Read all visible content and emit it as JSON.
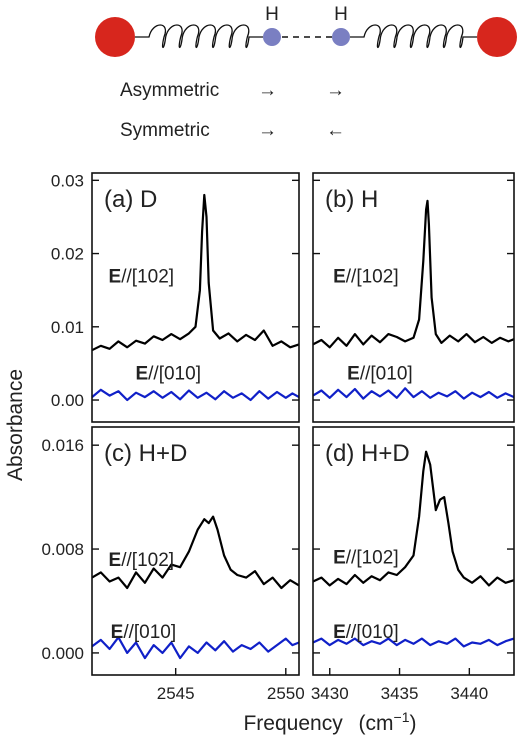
{
  "schematic": {
    "atom_labels": [
      "H",
      "H"
    ],
    "modes": [
      {
        "name": "Asymmetric",
        "arrows": [
          "→",
          "→"
        ]
      },
      {
        "name": "Symmetric",
        "arrows": [
          "→",
          "←"
        ]
      }
    ],
    "colors": {
      "end_atom": "#d7261d",
      "h_atom": "#7a7fc2",
      "spring": "#111111"
    }
  },
  "axes": {
    "ylabel": "Absorbance",
    "xlabel": "Frequency",
    "xlabel_unit": "(cm",
    "xlabel_exp": "−1",
    "xlabel_close": ")"
  },
  "colors": {
    "e102": "#000000",
    "e010": "#1020c8"
  },
  "chart_data": [
    {
      "type": "line",
      "panel": "(a) D",
      "xlim": [
        2541.2,
        2550.6
      ],
      "ylim": [
        -0.003,
        0.031
      ],
      "xticks": [],
      "xticklabels": [],
      "yticks": [
        0.0,
        0.01,
        0.02,
        0.03
      ],
      "yticklabels": [
        "0.00",
        "0.01",
        "0.02",
        "0.03"
      ],
      "series": [
        {
          "name": "E//[102]",
          "color": "#000000",
          "x": [
            2541.2,
            2541.6,
            2542.0,
            2542.4,
            2542.8,
            2543.2,
            2543.6,
            2544.0,
            2544.4,
            2544.8,
            2545.2,
            2545.6,
            2545.9,
            2546.1,
            2546.2,
            2546.3,
            2546.4,
            2546.5,
            2546.7,
            2547.0,
            2547.4,
            2547.8,
            2548.2,
            2548.6,
            2549.0,
            2549.4,
            2549.8,
            2550.2,
            2550.6
          ],
          "y": [
            0.0068,
            0.0074,
            0.007,
            0.008,
            0.0072,
            0.0081,
            0.0077,
            0.0087,
            0.0082,
            0.009,
            0.0083,
            0.0091,
            0.01,
            0.015,
            0.023,
            0.028,
            0.025,
            0.016,
            0.0095,
            0.0084,
            0.0091,
            0.008,
            0.0089,
            0.0082,
            0.0095,
            0.0074,
            0.008,
            0.0072,
            0.0076
          ]
        },
        {
          "name": "E//[010]",
          "color": "#1020c8",
          "x": [
            2541.2,
            2541.6,
            2542.0,
            2542.4,
            2542.8,
            2543.2,
            2543.6,
            2544.0,
            2544.4,
            2544.8,
            2545.2,
            2545.6,
            2546.0,
            2546.4,
            2546.8,
            2547.2,
            2547.6,
            2548.0,
            2548.4,
            2548.8,
            2549.2,
            2549.6,
            2550.0,
            2550.3,
            2550.6
          ],
          "y": [
            0.0004,
            0.0014,
            0.0006,
            0.0012,
            0.0,
            0.001,
            0.0004,
            0.0012,
            0.0003,
            0.0011,
            0.0001,
            0.0013,
            0.0003,
            0.001,
            0.0001,
            0.0012,
            0.0003,
            0.0009,
            0.0,
            0.0012,
            0.0002,
            0.0011,
            0.0003,
            0.0009,
            0.0004
          ]
        }
      ]
    },
    {
      "type": "line",
      "panel": "(b) H",
      "xlim": [
        3428.8,
        3443.2
      ],
      "ylim": [
        -0.003,
        0.031
      ],
      "xticks": [],
      "xticklabels": [],
      "yticks": [
        0.0,
        0.01,
        0.02,
        0.03
      ],
      "yticklabels": [],
      "series": [
        {
          "name": "E//[102]",
          "color": "#000000",
          "x": [
            3428.8,
            3429.4,
            3430.0,
            3430.6,
            3431.2,
            3431.8,
            3432.4,
            3433.0,
            3433.6,
            3434.2,
            3434.8,
            3435.4,
            3436.0,
            3436.4,
            3436.7,
            3436.9,
            3437.0,
            3437.1,
            3437.3,
            3437.6,
            3438.0,
            3438.6,
            3439.2,
            3439.8,
            3440.4,
            3441.0,
            3441.6,
            3442.2,
            3442.8,
            3443.2
          ],
          "y": [
            0.0076,
            0.0082,
            0.0072,
            0.0085,
            0.0074,
            0.009,
            0.0076,
            0.0088,
            0.0079,
            0.009,
            0.0086,
            0.008,
            0.0085,
            0.011,
            0.019,
            0.026,
            0.0272,
            0.024,
            0.014,
            0.009,
            0.0078,
            0.0088,
            0.008,
            0.009,
            0.0079,
            0.0086,
            0.0078,
            0.0085,
            0.008,
            0.0083
          ]
        },
        {
          "name": "E//[010]",
          "color": "#1020c8",
          "x": [
            3428.8,
            3429.4,
            3430.0,
            3430.6,
            3431.2,
            3431.8,
            3432.4,
            3433.0,
            3433.6,
            3434.2,
            3434.8,
            3435.4,
            3436.0,
            3436.6,
            3437.2,
            3437.8,
            3438.4,
            3439.0,
            3439.6,
            3440.2,
            3440.8,
            3441.4,
            3442.0,
            3442.6,
            3443.2
          ],
          "y": [
            0.0006,
            0.0013,
            0.0003,
            0.0014,
            0.0004,
            0.0015,
            0.0002,
            0.0012,
            0.0005,
            0.0013,
            0.0003,
            0.0016,
            0.0004,
            0.0012,
            0.0003,
            0.001,
            0.0005,
            0.0012,
            0.0002,
            0.001,
            0.0004,
            0.0011,
            0.0003,
            0.0009,
            0.0004
          ]
        }
      ]
    },
    {
      "type": "line",
      "panel": "(c) H+D",
      "xlim": [
        2541.2,
        2550.6
      ],
      "ylim": [
        -0.0017,
        0.0174
      ],
      "xticks": [
        2545,
        2550
      ],
      "xticklabels": [
        "2545",
        "2550"
      ],
      "yticks": [
        0.0,
        0.008,
        0.016
      ],
      "yticklabels": [
        "0.000",
        "0.008",
        "0.016"
      ],
      "series": [
        {
          "name": "E//[102]",
          "color": "#000000",
          "x": [
            2541.2,
            2541.6,
            2542.0,
            2542.4,
            2542.8,
            2543.2,
            2543.6,
            2544.0,
            2544.4,
            2544.8,
            2545.2,
            2545.6,
            2546.0,
            2546.3,
            2546.5,
            2546.7,
            2546.9,
            2547.2,
            2547.5,
            2547.8,
            2548.2,
            2548.6,
            2549.0,
            2549.4,
            2549.8,
            2550.2,
            2550.6
          ],
          "y": [
            0.0058,
            0.0062,
            0.0055,
            0.0058,
            0.005,
            0.0062,
            0.0054,
            0.0065,
            0.0058,
            0.0068,
            0.0066,
            0.0078,
            0.0095,
            0.0103,
            0.01,
            0.0105,
            0.0095,
            0.0075,
            0.0064,
            0.006,
            0.0058,
            0.0063,
            0.0053,
            0.0058,
            0.005,
            0.0056,
            0.0052
          ]
        },
        {
          "name": "E//[010]",
          "color": "#1020c8",
          "x": [
            2541.2,
            2541.6,
            2542.0,
            2542.4,
            2542.8,
            2543.2,
            2543.6,
            2544.0,
            2544.4,
            2544.8,
            2545.2,
            2545.6,
            2546.0,
            2546.4,
            2546.8,
            2547.2,
            2547.6,
            2548.0,
            2548.4,
            2548.8,
            2549.2,
            2549.6,
            2550.0,
            2550.3,
            2550.6
          ],
          "y": [
            0.0005,
            0.001,
            0.0003,
            0.0012,
            0.0,
            0.0008,
            -0.0004,
            0.0006,
            0.0,
            0.0008,
            -0.0004,
            0.0005,
            0.0,
            0.0008,
            0.0002,
            0.0009,
            0.0001,
            0.0006,
            0.0003,
            0.0008,
            0.0001,
            0.0006,
            0.0011,
            0.0006,
            0.0008
          ]
        }
      ]
    },
    {
      "type": "line",
      "panel": "(d) H+D",
      "xlim": [
        3428.8,
        3443.2
      ],
      "ylim": [
        -0.0017,
        0.0174
      ],
      "xticks": [
        3430,
        3435,
        3440
      ],
      "xticklabels": [
        "3430",
        "3435",
        "3440"
      ],
      "yticks": [
        0.0,
        0.008,
        0.016
      ],
      "yticklabels": [],
      "series": [
        {
          "name": "E//[102]",
          "color": "#000000",
          "x": [
            3428.8,
            3429.4,
            3430.0,
            3430.6,
            3431.2,
            3431.8,
            3432.4,
            3433.0,
            3433.6,
            3434.2,
            3434.8,
            3435.4,
            3436.0,
            3436.4,
            3436.7,
            3436.9,
            3437.2,
            3437.6,
            3437.9,
            3438.2,
            3438.5,
            3438.8,
            3439.2,
            3439.6,
            3440.2,
            3440.8,
            3441.4,
            3442.0,
            3442.6,
            3443.2
          ],
          "y": [
            0.0055,
            0.0058,
            0.0052,
            0.0057,
            0.0053,
            0.006,
            0.0054,
            0.0059,
            0.0056,
            0.0062,
            0.006,
            0.0066,
            0.0075,
            0.0105,
            0.014,
            0.0155,
            0.0145,
            0.011,
            0.0118,
            0.012,
            0.01,
            0.0078,
            0.0064,
            0.0058,
            0.0054,
            0.0059,
            0.0052,
            0.0058,
            0.0054,
            0.0056
          ]
        },
        {
          "name": "E//[010]",
          "color": "#1020c8",
          "x": [
            3428.8,
            3429.4,
            3430.0,
            3430.6,
            3431.2,
            3431.8,
            3432.4,
            3433.0,
            3433.6,
            3434.2,
            3434.8,
            3435.4,
            3436.0,
            3436.6,
            3437.2,
            3437.8,
            3438.4,
            3439.0,
            3439.6,
            3440.2,
            3440.8,
            3441.4,
            3442.0,
            3442.6,
            3443.2
          ],
          "y": [
            0.0008,
            0.0011,
            0.0006,
            0.001,
            0.0007,
            0.0011,
            0.0006,
            0.0009,
            0.0007,
            0.0011,
            0.0006,
            0.001,
            0.0007,
            0.0011,
            0.0006,
            0.0009,
            0.0007,
            0.0011,
            0.0005,
            0.0008,
            0.0007,
            0.001,
            0.0006,
            0.0009,
            0.0011
          ]
        }
      ]
    }
  ]
}
